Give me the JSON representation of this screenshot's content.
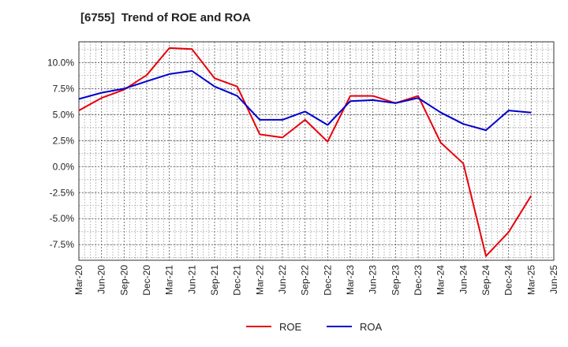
{
  "chart_data": {
    "type": "line",
    "title": "[6755]  Trend of ROE and ROA",
    "xlabel": "",
    "ylabel": "",
    "x_tick_labels": [
      "Mar-20",
      "Jun-20",
      "Sep-20",
      "Dec-20",
      "Mar-21",
      "Jun-21",
      "Sep-21",
      "Dec-21",
      "Mar-22",
      "Jun-22",
      "Sep-22",
      "Dec-22",
      "Mar-23",
      "Jun-23",
      "Sep-23",
      "Dec-23",
      "Mar-24",
      "Jun-24",
      "Sep-24",
      "Dec-24",
      "Mar-25",
      "Jun-25"
    ],
    "x": [
      "Mar-20",
      "Jun-20",
      "Sep-20",
      "Dec-20",
      "Mar-21",
      "Jun-21",
      "Sep-21",
      "Dec-21",
      "Mar-22",
      "Jun-22",
      "Sep-22",
      "Dec-22",
      "Mar-23",
      "Jun-23",
      "Sep-23",
      "Dec-23",
      "Mar-24",
      "Jun-24",
      "Sep-24",
      "Dec-24",
      "Mar-25"
    ],
    "y_ticks": [
      10.0,
      7.5,
      5.0,
      2.5,
      0.0,
      -2.5,
      -5.0,
      -7.5
    ],
    "y_tick_labels": [
      "10.0%",
      "7.5%",
      "5.0%",
      "2.5%",
      "0.0%",
      "-2.5%",
      "-5.0%",
      "-7.5%"
    ],
    "ylim": [
      -9.0,
      12.0
    ],
    "grid": true,
    "legend_position": "bottom-center",
    "series": [
      {
        "name": "ROE",
        "color": "#e8000b",
        "values": [
          5.4,
          6.6,
          7.4,
          8.8,
          11.4,
          11.3,
          8.5,
          7.7,
          3.1,
          2.8,
          4.5,
          2.4,
          6.8,
          6.8,
          6.1,
          6.8,
          2.3,
          0.3,
          -8.6,
          -6.3,
          -2.8
        ]
      },
      {
        "name": "ROA",
        "color": "#0000cc",
        "values": [
          6.5,
          7.1,
          7.5,
          8.2,
          8.9,
          9.2,
          7.7,
          6.8,
          4.5,
          4.5,
          5.3,
          4.0,
          6.3,
          6.4,
          6.1,
          6.6,
          5.2,
          4.1,
          3.5,
          5.4,
          5.2
        ]
      }
    ]
  }
}
